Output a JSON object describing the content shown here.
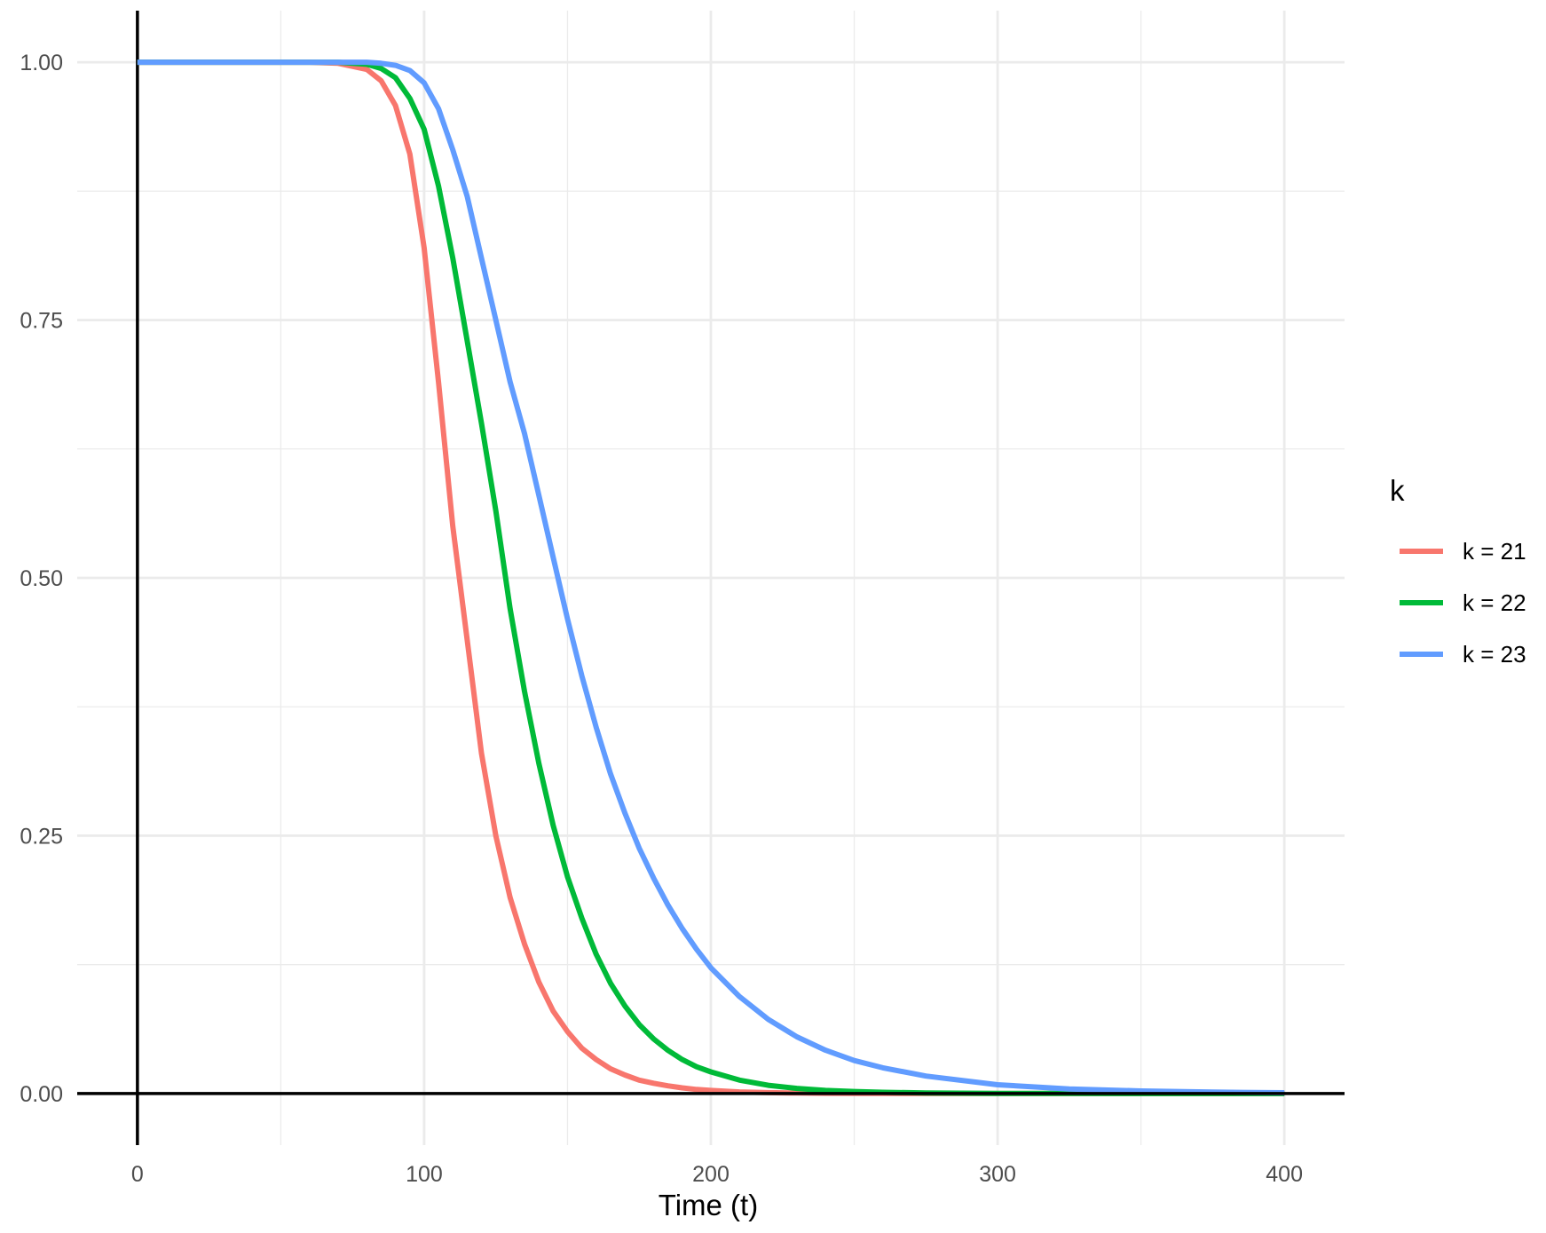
{
  "chart_data": {
    "type": "line",
    "title": "",
    "xlabel": "Time (t)",
    "ylabel": "",
    "xlim": [
      -21,
      421
    ],
    "ylim": [
      -0.05,
      1.05
    ],
    "x_ticks": [
      0,
      100,
      200,
      300,
      400
    ],
    "x_tick_labels": [
      "0",
      "100",
      "200",
      "300",
      "400"
    ],
    "y_ticks": [
      0,
      0.25,
      0.5,
      0.75,
      1
    ],
    "y_tick_labels": [
      "0.00",
      "0.25",
      "0.50",
      "0.75",
      "1.00"
    ],
    "grid": true,
    "legend": {
      "title": "k",
      "placement": "right"
    },
    "x": [
      0,
      60,
      70,
      80,
      85,
      90,
      95,
      100,
      105,
      110,
      115,
      120,
      125,
      130,
      135,
      140,
      145,
      150,
      155,
      160,
      165,
      170,
      175,
      180,
      185,
      190,
      195,
      200,
      210,
      220,
      230,
      240,
      250,
      260,
      275,
      300,
      325,
      350,
      375,
      400
    ],
    "series": [
      {
        "name": "k = 21",
        "color": "#F8766D",
        "values": [
          1.0,
          1.0,
          0.999,
          0.993,
          0.982,
          0.958,
          0.911,
          0.82,
          0.69,
          0.55,
          0.44,
          0.33,
          0.25,
          0.19,
          0.145,
          0.108,
          0.08,
          0.06,
          0.044,
          0.033,
          0.024,
          0.018,
          0.013,
          0.01,
          0.0075,
          0.0055,
          0.004,
          0.003,
          0.0016,
          0.0009,
          0.0005,
          0.0003,
          0.0002,
          0.0001,
          0.0,
          0.0,
          0.0,
          0.0,
          0.0,
          0.0
        ]
      },
      {
        "name": "k = 22",
        "color": "#00BA38",
        "values": [
          1.0,
          1.0,
          1.0,
          0.998,
          0.994,
          0.985,
          0.965,
          0.935,
          0.88,
          0.81,
          0.73,
          0.65,
          0.565,
          0.47,
          0.39,
          0.32,
          0.26,
          0.21,
          0.17,
          0.135,
          0.107,
          0.085,
          0.067,
          0.053,
          0.042,
          0.033,
          0.026,
          0.021,
          0.013,
          0.008,
          0.005,
          0.003,
          0.002,
          0.0012,
          0.0006,
          0.0002,
          0.0001,
          0.0,
          0.0,
          0.0
        ]
      },
      {
        "name": "k = 23",
        "color": "#619CFF",
        "values": [
          1.0,
          1.0,
          1.0,
          1.0,
          0.999,
          0.997,
          0.992,
          0.98,
          0.955,
          0.915,
          0.87,
          0.81,
          0.75,
          0.69,
          0.64,
          0.58,
          0.52,
          0.46,
          0.405,
          0.355,
          0.31,
          0.272,
          0.238,
          0.209,
          0.183,
          0.16,
          0.14,
          0.122,
          0.094,
          0.072,
          0.055,
          0.042,
          0.032,
          0.025,
          0.017,
          0.0085,
          0.0045,
          0.0025,
          0.0014,
          0.0008
        ]
      }
    ]
  }
}
